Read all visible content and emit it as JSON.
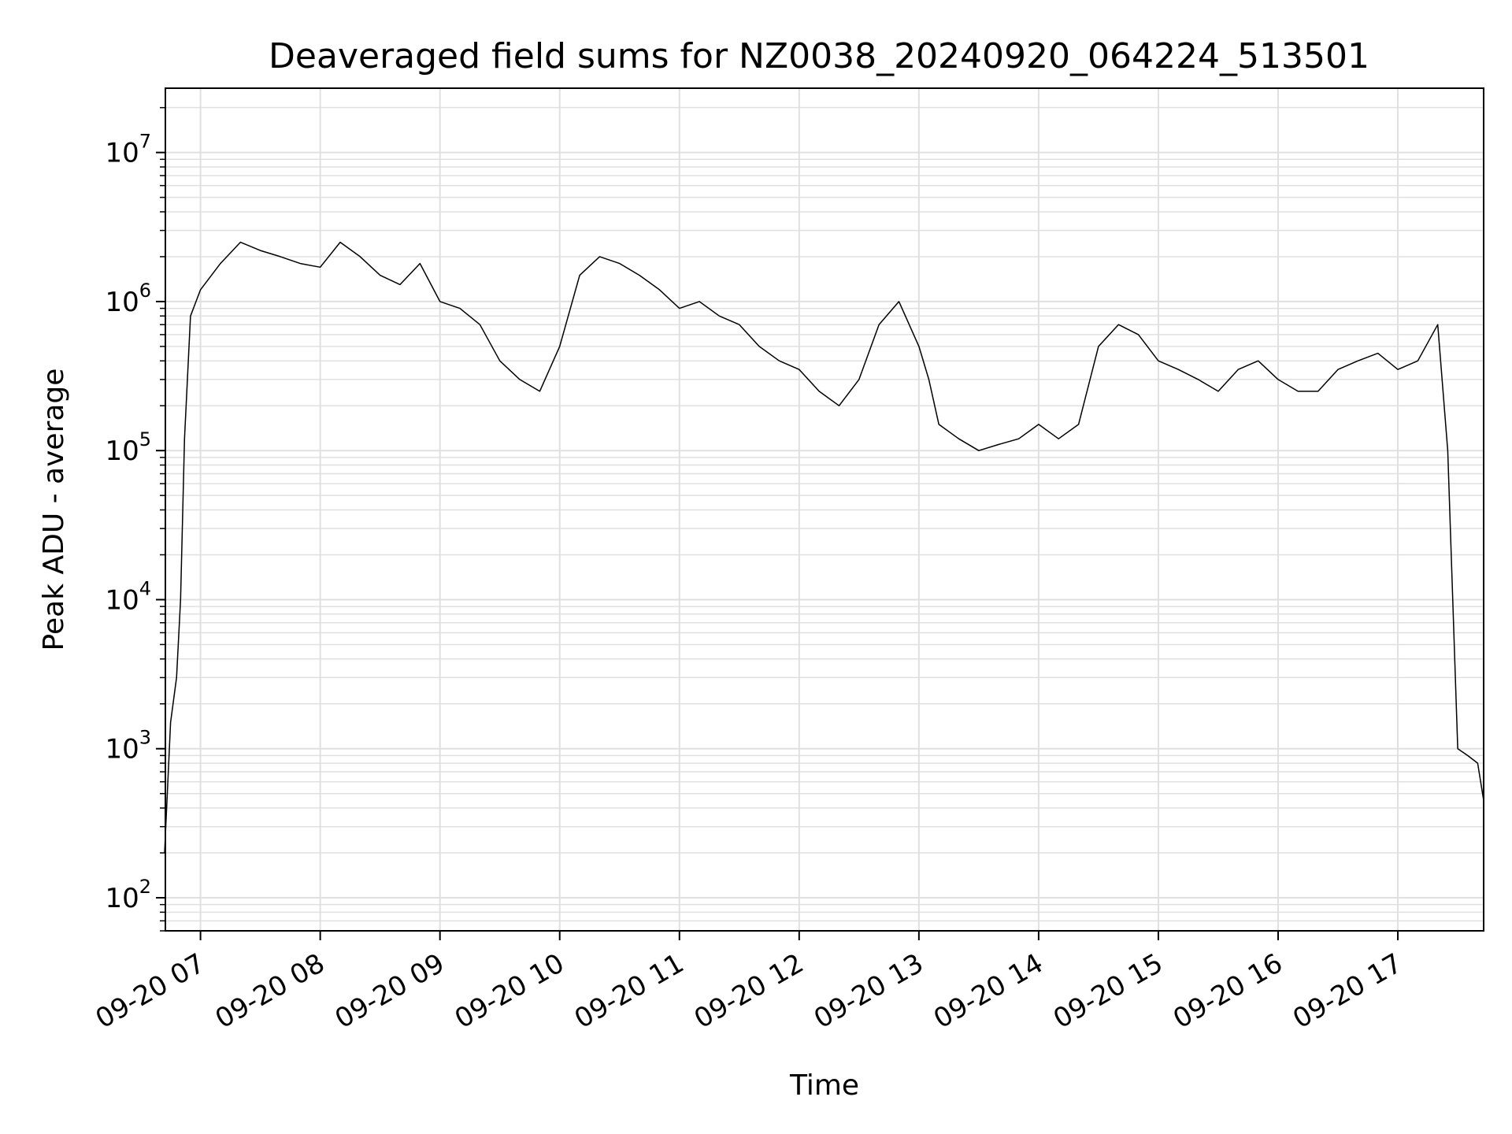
{
  "chart_data": {
    "type": "line",
    "title": "Deaveraged field sums for NZ0038_20240920_064224_513501",
    "xlabel": "Time",
    "ylabel": "Peak ADU - average",
    "y_scale": "log",
    "ylim": [
      60,
      27000000
    ],
    "xlim": [
      "2024-09-20 06:42:24",
      "2024-09-20 17:43:00"
    ],
    "grid": true,
    "line_color": "#000000",
    "grid_color": "#e0e0e0",
    "x_ticks": [
      {
        "label": "09-20 07",
        "value": "2024-09-20 07:00"
      },
      {
        "label": "09-20 08",
        "value": "2024-09-20 08:00"
      },
      {
        "label": "09-20 09",
        "value": "2024-09-20 09:00"
      },
      {
        "label": "09-20 10",
        "value": "2024-09-20 10:00"
      },
      {
        "label": "09-20 11",
        "value": "2024-09-20 11:00"
      },
      {
        "label": "09-20 12",
        "value": "2024-09-20 12:00"
      },
      {
        "label": "09-20 13",
        "value": "2024-09-20 13:00"
      },
      {
        "label": "09-20 14",
        "value": "2024-09-20 14:00"
      },
      {
        "label": "09-20 15",
        "value": "2024-09-20 15:00"
      },
      {
        "label": "09-20 16",
        "value": "2024-09-20 16:00"
      },
      {
        "label": "09-20 17",
        "value": "2024-09-20 17:00"
      }
    ],
    "y_ticks": [
      {
        "base": "10",
        "exp": "2",
        "value": 100
      },
      {
        "base": "10",
        "exp": "3",
        "value": 1000
      },
      {
        "base": "10",
        "exp": "4",
        "value": 10000
      },
      {
        "base": "10",
        "exp": "5",
        "value": 100000
      },
      {
        "base": "10",
        "exp": "6",
        "value": 1000000
      },
      {
        "base": "10",
        "exp": "7",
        "value": 10000000
      }
    ],
    "series": [
      {
        "x": [
          "2024-09-20 06:42",
          "2024-09-20 06:45",
          "2024-09-20 06:48",
          "2024-09-20 06:50",
          "2024-09-20 06:52",
          "2024-09-20 06:55",
          "2024-09-20 07:00",
          "2024-09-20 07:10",
          "2024-09-20 07:20",
          "2024-09-20 07:30",
          "2024-09-20 07:40",
          "2024-09-20 07:50",
          "2024-09-20 08:00",
          "2024-09-20 08:10",
          "2024-09-20 08:20",
          "2024-09-20 08:30",
          "2024-09-20 08:40",
          "2024-09-20 08:50",
          "2024-09-20 09:00",
          "2024-09-20 09:10",
          "2024-09-20 09:20",
          "2024-09-20 09:30",
          "2024-09-20 09:40",
          "2024-09-20 09:50",
          "2024-09-20 10:00",
          "2024-09-20 10:10",
          "2024-09-20 10:20",
          "2024-09-20 10:30",
          "2024-09-20 10:40",
          "2024-09-20 10:50",
          "2024-09-20 11:00",
          "2024-09-20 11:10",
          "2024-09-20 11:20",
          "2024-09-20 11:30",
          "2024-09-20 11:40",
          "2024-09-20 11:50",
          "2024-09-20 12:00",
          "2024-09-20 12:10",
          "2024-09-20 12:20",
          "2024-09-20 12:30",
          "2024-09-20 12:40",
          "2024-09-20 12:50",
          "2024-09-20 13:00",
          "2024-09-20 13:05",
          "2024-09-20 13:10",
          "2024-09-20 13:20",
          "2024-09-20 13:30",
          "2024-09-20 13:40",
          "2024-09-20 13:50",
          "2024-09-20 14:00",
          "2024-09-20 14:10",
          "2024-09-20 14:20",
          "2024-09-20 14:30",
          "2024-09-20 14:40",
          "2024-09-20 14:50",
          "2024-09-20 15:00",
          "2024-09-20 15:10",
          "2024-09-20 15:20",
          "2024-09-20 15:30",
          "2024-09-20 15:40",
          "2024-09-20 15:50",
          "2024-09-20 16:00",
          "2024-09-20 16:10",
          "2024-09-20 16:20",
          "2024-09-20 16:30",
          "2024-09-20 16:40",
          "2024-09-20 16:50",
          "2024-09-20 17:00",
          "2024-09-20 17:10",
          "2024-09-20 17:20",
          "2024-09-20 17:25",
          "2024-09-20 17:30",
          "2024-09-20 17:35",
          "2024-09-20 17:40",
          "2024-09-20 17:43"
        ],
        "y": [
          200,
          1500,
          3000,
          10000,
          120000,
          800000,
          1200000,
          1800000,
          2500000,
          2200000,
          2000000,
          1800000,
          1700000,
          2500000,
          2000000,
          1500000,
          1300000,
          1800000,
          1000000,
          900000,
          700000,
          400000,
          300000,
          250000,
          500000,
          1500000,
          2000000,
          1800000,
          1500000,
          1200000,
          900000,
          1000000,
          800000,
          700000,
          500000,
          400000,
          350000,
          250000,
          200000,
          300000,
          700000,
          1000000,
          500000,
          300000,
          150000,
          120000,
          100000,
          110000,
          120000,
          150000,
          120000,
          150000,
          500000,
          700000,
          600000,
          400000,
          350000,
          300000,
          250000,
          350000,
          400000,
          300000,
          250000,
          250000,
          350000,
          400000,
          450000,
          350000,
          400000,
          700000,
          100000,
          1000,
          900,
          800,
          450
        ]
      }
    ]
  }
}
